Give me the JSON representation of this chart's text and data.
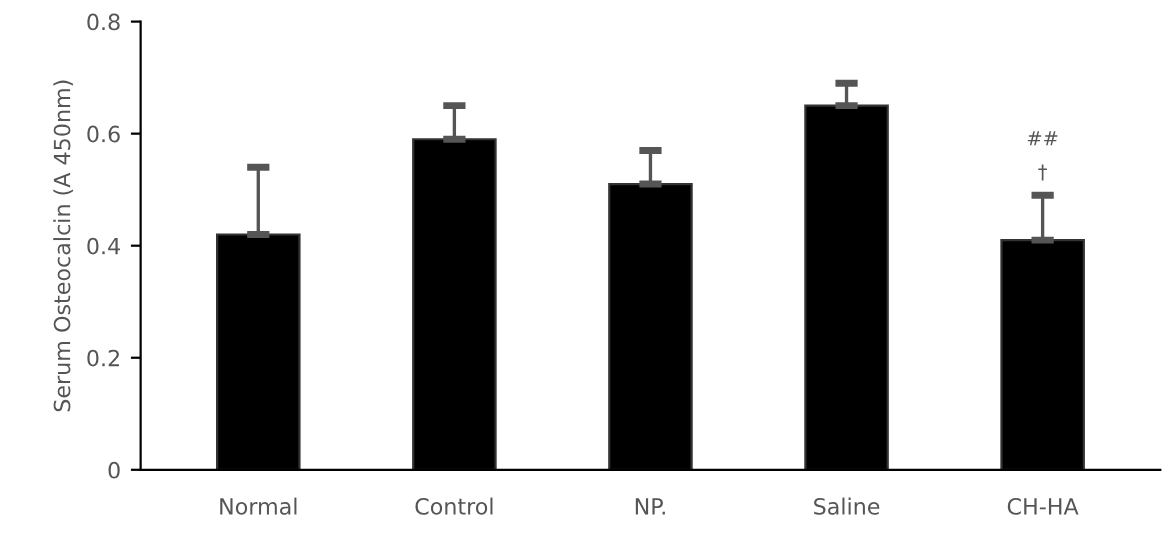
{
  "chart_data": {
    "type": "bar",
    "ylabel": "Serum Osteocalcin (A 450nm)",
    "categories": [
      "Normal",
      "Control",
      "NP.",
      "Saline",
      "CH-HA"
    ],
    "values": [
      0.42,
      0.59,
      0.51,
      0.65,
      0.41
    ],
    "color": "#000000",
    "errors": [
      [
        0.42,
        0.54
      ],
      [
        0.59,
        0.65
      ],
      [
        0.51,
        0.57
      ],
      [
        0.65,
        0.69
      ],
      [
        0.41,
        0.49
      ]
    ],
    "ylim": [
      0,
      0.8
    ],
    "yticks": [
      {
        "value": 0,
        "label": "0"
      },
      0.2,
      0.4,
      0.6,
      0.8
    ],
    "grid": false,
    "legend": false,
    "annotations": [
      {
        "text": "†",
        "x": "CH-HA",
        "y": 0.49
      },
      {
        "text": "##",
        "x": "CH-HA",
        "y": 0.49
      }
    ]
  }
}
